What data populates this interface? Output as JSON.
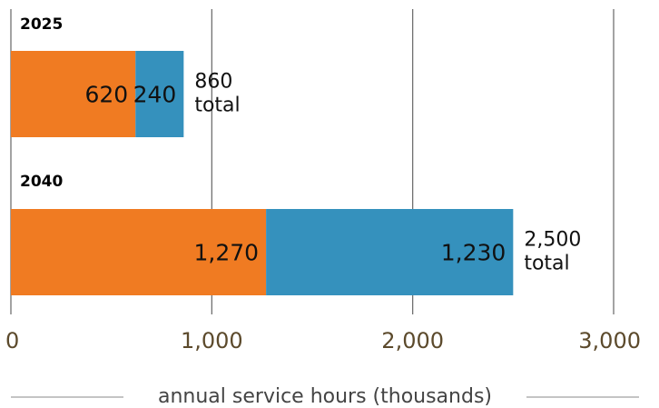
{
  "chart_data": {
    "type": "stacked-hbar",
    "categories": [
      "2025",
      "2040"
    ],
    "series": [
      {
        "color": "#f07b22",
        "values": [
          620,
          1270
        ],
        "value_labels": [
          "620",
          "1,270"
        ]
      },
      {
        "color": "#3591bd",
        "values": [
          240,
          1230
        ],
        "value_labels": [
          "240",
          "1,230"
        ]
      }
    ],
    "totals": {
      "values": [
        860,
        2500
      ],
      "labels": [
        "860",
        "2,500"
      ],
      "suffix": "total"
    },
    "xlim": [
      0,
      3000
    ],
    "xticks": [
      0,
      {
        "value": 1000,
        "label": "1,000"
      },
      {
        "value": 2000,
        "label": "2,000"
      },
      {
        "value": 3000,
        "label": "3,000"
      }
    ],
    "xlabel": "annual service hours (thousands)",
    "grid": true
  }
}
